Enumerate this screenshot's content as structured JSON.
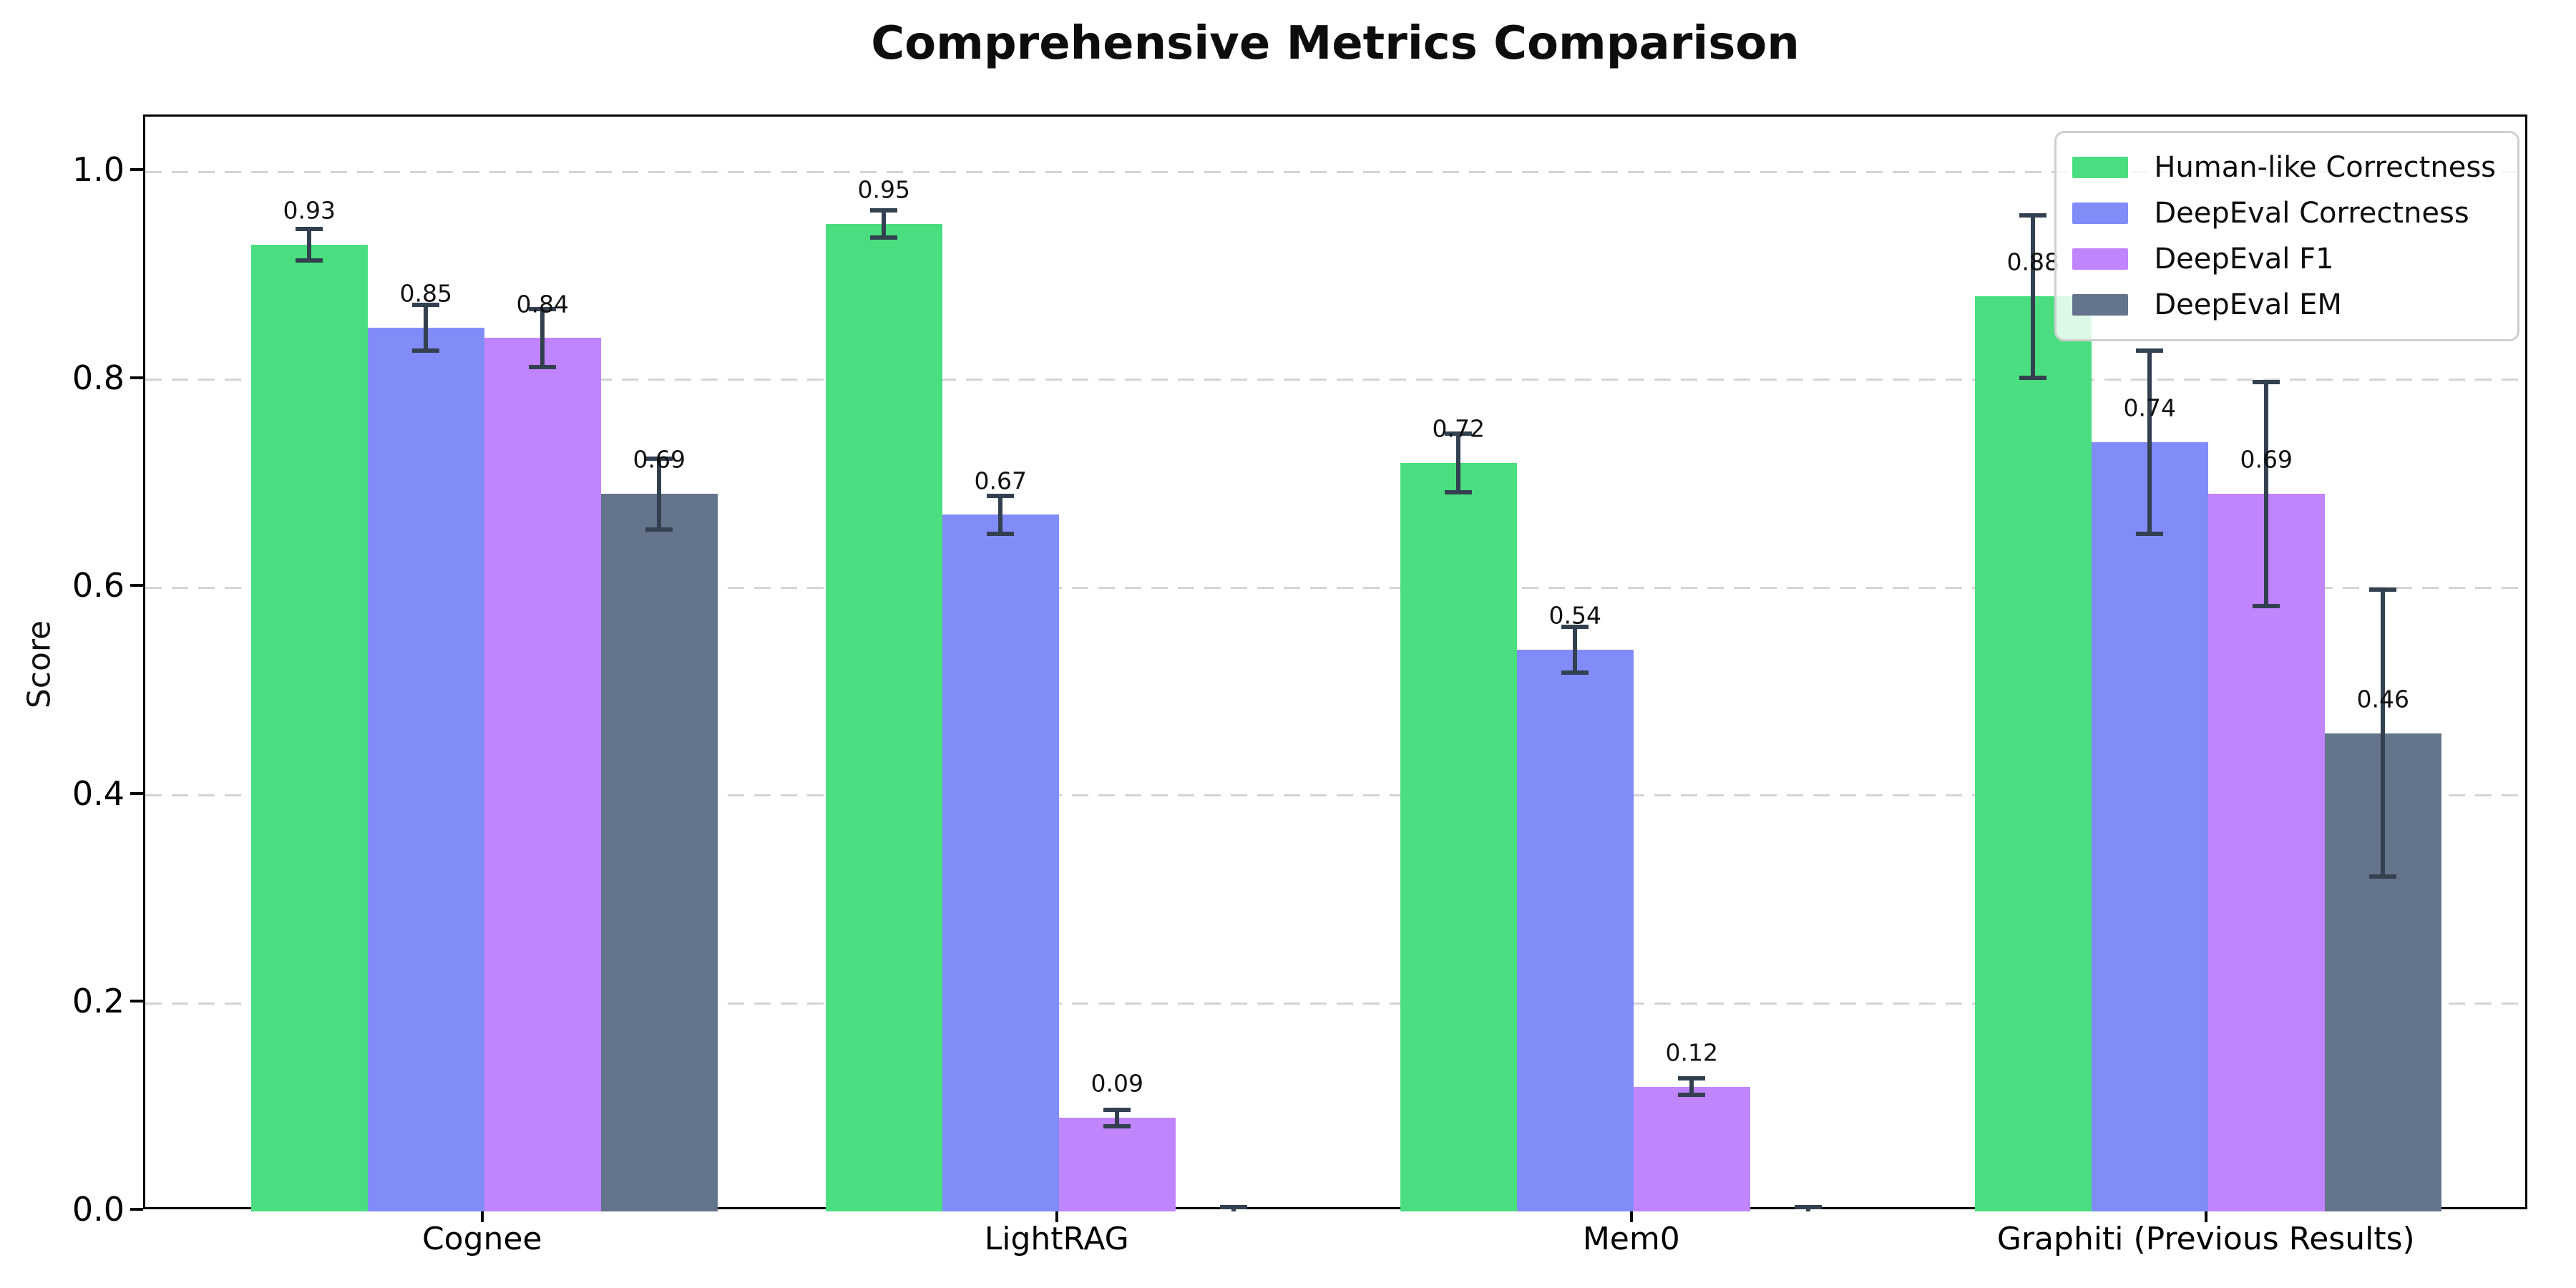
{
  "chart_data": {
    "type": "bar",
    "title": "Comprehensive Metrics Comparison",
    "ylabel": "Score",
    "xlabel": "",
    "categories": [
      "Cognee",
      "LightRAG",
      "Mem0",
      "Graphiti (Previous Results)"
    ],
    "yticks": [
      {
        "value": 0.0,
        "label": "0.0"
      },
      {
        "value": 0.2,
        "label": "0.2"
      },
      {
        "value": 0.4,
        "label": "0.4"
      },
      {
        "value": 0.6,
        "label": "0.6"
      },
      {
        "value": 0.8,
        "label": "0.8"
      },
      {
        "value": 1.0,
        "label": "1.0"
      }
    ],
    "ylim": [
      0,
      1.053
    ],
    "grid": "horizontal-dashed",
    "legend_position": "upper-right",
    "error_bar_color": "#33404f",
    "series": [
      {
        "name": "Human-like Correctness",
        "color": "#4ade80",
        "values": [
          0.93,
          0.95,
          0.72,
          0.88
        ],
        "errors": [
          0.015,
          0.013,
          0.028,
          0.078
        ],
        "labels": [
          "0.93",
          "0.95",
          "0.72",
          "0.88"
        ]
      },
      {
        "name": "DeepEval Correctness",
        "color": "#818cf8",
        "values": [
          0.85,
          0.67,
          0.54,
          0.74
        ],
        "errors": [
          0.022,
          0.018,
          0.022,
          0.088
        ],
        "labels": [
          "0.85",
          "0.67",
          "0.54",
          "0.74"
        ]
      },
      {
        "name": "DeepEval F1",
        "color": "#c084fc",
        "values": [
          0.84,
          0.09,
          0.12,
          0.69
        ],
        "errors": [
          0.028,
          0.008,
          0.008,
          0.108
        ],
        "labels": [
          "0.84",
          "0.09",
          "0.12",
          "0.69"
        ]
      },
      {
        "name": "DeepEval EM",
        "color": "#64748b",
        "values": [
          0.69,
          0.0,
          0.0,
          0.46
        ],
        "errors": [
          0.034,
          0.004,
          0.004,
          0.138
        ],
        "labels": [
          "0.69",
          null,
          null,
          "0.46"
        ]
      }
    ]
  }
}
